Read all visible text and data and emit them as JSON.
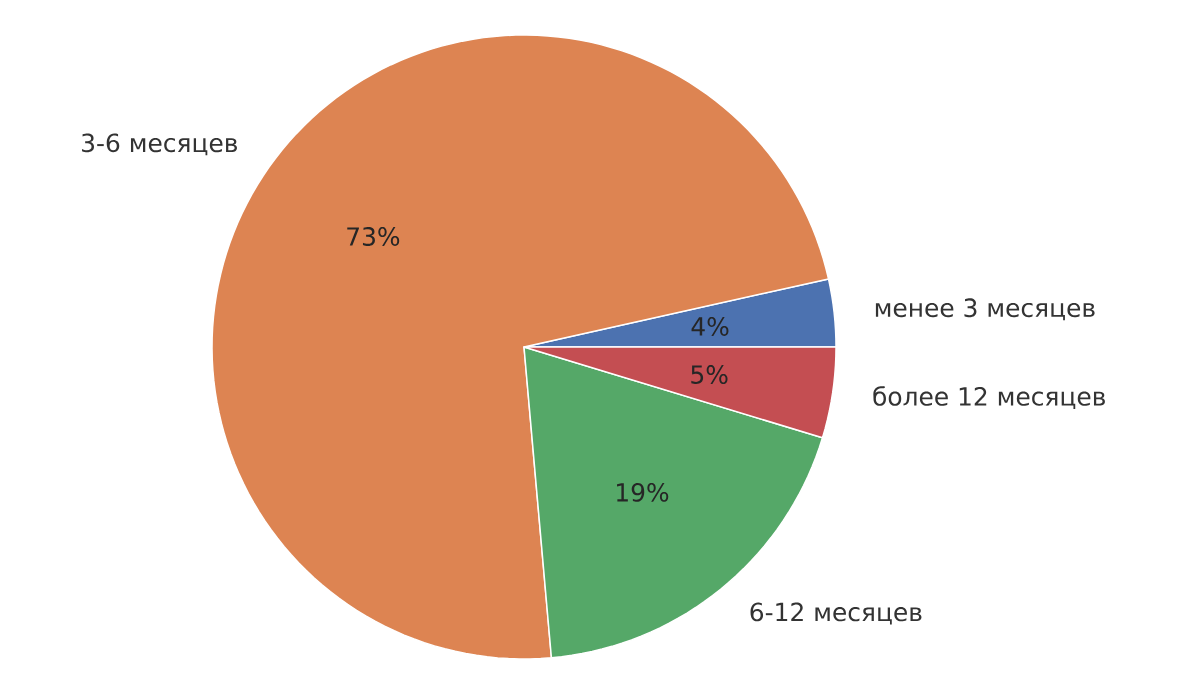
{
  "chart_data": {
    "type": "pie",
    "categories": [
      "менее 3 месяцев",
      "3-6 месяцев",
      "6-12 месяцев",
      "более 12 месяцев"
    ],
    "values": [
      3.5,
      72.9,
      18.9,
      4.7
    ],
    "value_labels": [
      "4%",
      "73%",
      "19%",
      "5%"
    ],
    "colors": [
      "#4c72b0",
      "#dd8452",
      "#55a868",
      "#c44e52"
    ]
  }
}
